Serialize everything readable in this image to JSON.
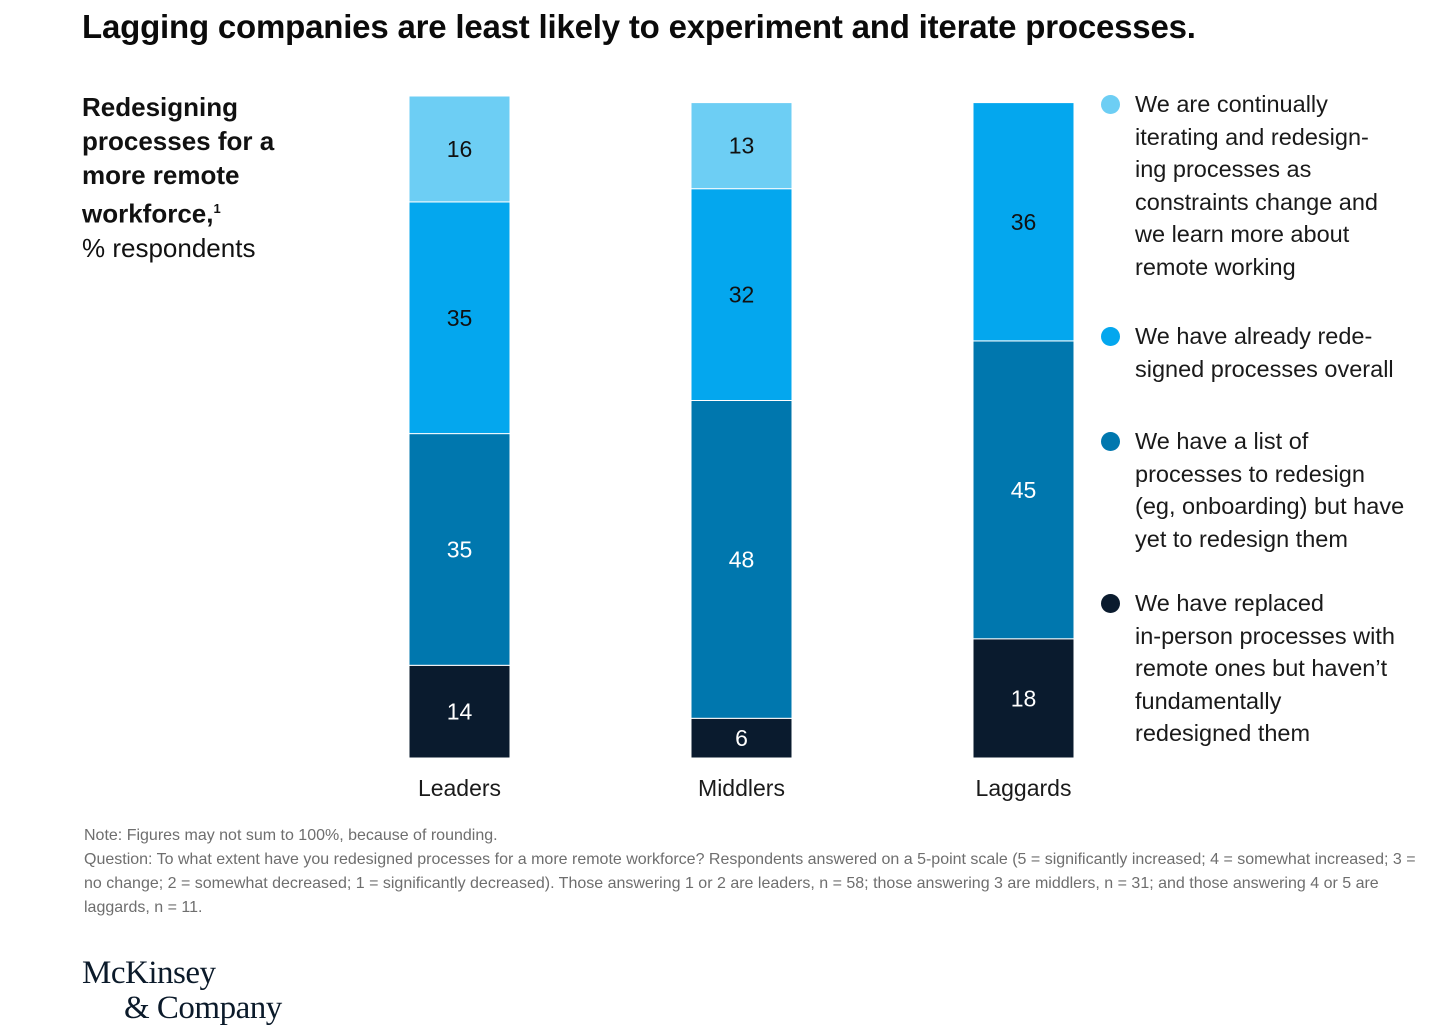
{
  "title": "Lagging companies are least likely to experiment and iterate processes.",
  "subtitle": {
    "main": "Redesigning processes for a more remote workforce,",
    "footnote_mark": "1",
    "unit": "% respondents"
  },
  "chart_data": {
    "type": "bar",
    "stacked": true,
    "orientation": "vertical",
    "categories": [
      "Leaders",
      "Middlers",
      "Laggards"
    ],
    "series": [
      {
        "name": "We have replaced in-person processes with remote ones but haven’t fundamentally redesigned them",
        "color": "#0a1b2e",
        "values": [
          14,
          6,
          18
        ]
      },
      {
        "name": "We have a list of processes to redesign (eg, onboarding) but have yet to redesign them",
        "color": "#0077ae",
        "values": [
          35,
          48,
          45
        ]
      },
      {
        "name": "We have already redesigned processes overall",
        "color": "#04a7ee",
        "values": [
          35,
          32,
          36
        ]
      },
      {
        "name": "We are continually iterating and redesigning processes as constraints change and we learn more about remote working",
        "color": "#6dcef4",
        "values": [
          16,
          13,
          null
        ]
      }
    ],
    "data_labels": true,
    "legend_position": "right"
  },
  "legend": [
    {
      "lines": [
        "We are continually",
        "iterating and redesign-",
        "ing processes as",
        "constraints change and",
        "we learn more about",
        "remote working"
      ],
      "color": "#6dcef4"
    },
    {
      "lines": [
        "We have already rede-",
        "signed processes overall"
      ],
      "color": "#04a7ee"
    },
    {
      "lines": [
        "We have a list of",
        "processes to redesign",
        "(eg, onboarding) but have",
        "yet to redesign them"
      ],
      "color": "#0077ae"
    },
    {
      "lines": [
        "We have replaced",
        "in-person processes with",
        "remote ones but haven’t",
        "fundamentally",
        "redesigned them"
      ],
      "color": "#0a1b2e"
    }
  ],
  "notes": {
    "note": "Note: Figures may not sum to 100%, because of rounding.",
    "question": "Question: To what extent have you redesigned processes for a more remote workforce? Respondents answered on a 5-point scale (5 = significantly increased; 4 = somewhat increased; 3 = no change; 2 = somewhat decreased; 1 = significantly decreased). Those answering 1 or 2 are leaders, n = 58; those answering 3 are middlers, n = 31; and those answering 4 or 5 are laggards, n = 11."
  },
  "logo": {
    "line1": "McKinsey",
    "line2": "& Company"
  }
}
